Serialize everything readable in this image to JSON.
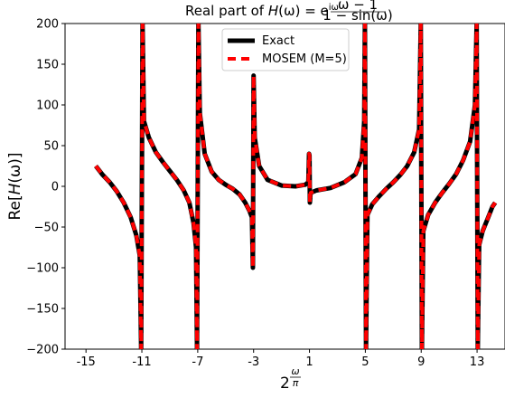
{
  "chart_data": {
    "type": "line",
    "title": {
      "prefix": "Real part of ",
      "H": "H",
      "omega": "(ω) = e",
      "exp": "iω",
      "frac_num": "ω − 1",
      "frac_den": "1 − sin(ω)"
    },
    "xlabel": {
      "base": "2",
      "sup_num": "ω",
      "sup_den": "π"
    },
    "ylabel": {
      "prefix": "Re[",
      "H": "H",
      "suffix": "(ω)]"
    },
    "xlim": [
      -16.5,
      15
    ],
    "ylim": [
      -200,
      200
    ],
    "x_ticks": [
      -15,
      -11,
      -7,
      -3,
      1,
      5,
      9,
      13
    ],
    "x_tick_labels": [
      "-15",
      "-11",
      "-7",
      "-3",
      "1",
      "5",
      "9",
      "13"
    ],
    "y_ticks": [
      -200,
      -150,
      -100,
      -50,
      0,
      50,
      100,
      150,
      200
    ],
    "y_tick_labels": [
      "−200",
      "−150",
      "−100",
      "−50",
      "0",
      "50",
      "100",
      "150",
      "200"
    ],
    "legend_placement": "top-center",
    "grid": false,
    "series": [
      {
        "name": "Exact",
        "color": "#000000",
        "style": "solid",
        "points": [
          [
            -14.3,
            25
          ],
          [
            -13.8,
            14
          ],
          [
            -13.3,
            5
          ],
          [
            -12.8,
            -6
          ],
          [
            -12.3,
            -20
          ],
          [
            -11.8,
            -38
          ],
          [
            -11.4,
            -60
          ],
          [
            -11.15,
            -85
          ],
          [
            -11.05,
            -200
          ],
          [
            -10.95,
            200
          ],
          [
            -10.85,
            80
          ],
          [
            -10.5,
            60
          ],
          [
            -10.0,
            42
          ],
          [
            -9.5,
            30
          ],
          [
            -9.0,
            19
          ],
          [
            -8.5,
            8
          ],
          [
            -8.0,
            -5
          ],
          [
            -7.6,
            -20
          ],
          [
            -7.3,
            -45
          ],
          [
            -7.12,
            -75
          ],
          [
            -7.05,
            -200
          ],
          [
            -6.95,
            200
          ],
          [
            -6.85,
            90
          ],
          [
            -6.5,
            40
          ],
          [
            -6.0,
            18
          ],
          [
            -5.5,
            8
          ],
          [
            -5.0,
            2
          ],
          [
            -4.5,
            -3
          ],
          [
            -4.0,
            -10
          ],
          [
            -3.6,
            -20
          ],
          [
            -3.3,
            -30
          ],
          [
            -3.12,
            -38
          ],
          [
            -3.05,
            -100
          ],
          [
            -3.0,
            136
          ],
          [
            -2.92,
            60
          ],
          [
            -2.6,
            25
          ],
          [
            -2.0,
            8
          ],
          [
            -1.0,
            1
          ],
          [
            0.0,
            0
          ],
          [
            0.7,
            2
          ],
          [
            0.92,
            5
          ],
          [
            0.97,
            40
          ],
          [
            1.0,
            38
          ],
          [
            1.03,
            -20
          ],
          [
            1.08,
            -8
          ],
          [
            1.5,
            -5
          ],
          [
            2.5,
            -2
          ],
          [
            3.5,
            5
          ],
          [
            4.3,
            15
          ],
          [
            4.75,
            35
          ],
          [
            4.92,
            80
          ],
          [
            4.97,
            200
          ],
          [
            5.05,
            -200
          ],
          [
            5.15,
            -35
          ],
          [
            5.5,
            -22
          ],
          [
            6.0,
            -12
          ],
          [
            6.5,
            -3
          ],
          [
            7.0,
            5
          ],
          [
            7.5,
            14
          ],
          [
            8.0,
            25
          ],
          [
            8.5,
            42
          ],
          [
            8.85,
            70
          ],
          [
            8.97,
            200
          ],
          [
            9.05,
            -200
          ],
          [
            9.15,
            -55
          ],
          [
            9.5,
            -35
          ],
          [
            10.0,
            -20
          ],
          [
            10.5,
            -8
          ],
          [
            11.0,
            3
          ],
          [
            11.5,
            15
          ],
          [
            12.0,
            32
          ],
          [
            12.5,
            55
          ],
          [
            12.85,
            100
          ],
          [
            12.97,
            200
          ],
          [
            13.05,
            -200
          ],
          [
            13.15,
            -72
          ],
          [
            13.4,
            -55
          ],
          [
            13.8,
            -38
          ],
          [
            14.1,
            -25
          ],
          [
            14.3,
            -20
          ]
        ]
      },
      {
        "name": "MOSEM (M=5)",
        "color": "#ff0000",
        "style": "dashed",
        "points": [
          [
            -14.3,
            25
          ],
          [
            -13.8,
            14
          ],
          [
            -13.3,
            5
          ],
          [
            -12.8,
            -6
          ],
          [
            -12.3,
            -20
          ],
          [
            -11.8,
            -38
          ],
          [
            -11.4,
            -60
          ],
          [
            -11.15,
            -85
          ],
          [
            -11.05,
            -200
          ],
          [
            -10.95,
            200
          ],
          [
            -10.85,
            80
          ],
          [
            -10.5,
            60
          ],
          [
            -10.0,
            42
          ],
          [
            -9.5,
            30
          ],
          [
            -9.0,
            19
          ],
          [
            -8.5,
            8
          ],
          [
            -8.0,
            -5
          ],
          [
            -7.6,
            -20
          ],
          [
            -7.3,
            -45
          ],
          [
            -7.12,
            -75
          ],
          [
            -7.05,
            -200
          ],
          [
            -6.95,
            200
          ],
          [
            -6.85,
            90
          ],
          [
            -6.5,
            40
          ],
          [
            -6.0,
            18
          ],
          [
            -5.5,
            8
          ],
          [
            -5.0,
            2
          ],
          [
            -4.5,
            -3
          ],
          [
            -4.0,
            -10
          ],
          [
            -3.6,
            -20
          ],
          [
            -3.3,
            -30
          ],
          [
            -3.12,
            -38
          ],
          [
            -3.05,
            -100
          ],
          [
            -3.0,
            136
          ],
          [
            -2.92,
            60
          ],
          [
            -2.6,
            25
          ],
          [
            -2.0,
            8
          ],
          [
            -1.0,
            1
          ],
          [
            0.0,
            0
          ],
          [
            0.7,
            2
          ],
          [
            0.92,
            5
          ],
          [
            0.97,
            40
          ],
          [
            1.0,
            38
          ],
          [
            1.03,
            -20
          ],
          [
            1.08,
            -8
          ],
          [
            1.5,
            -5
          ],
          [
            2.5,
            -2
          ],
          [
            3.5,
            5
          ],
          [
            4.3,
            15
          ],
          [
            4.75,
            35
          ],
          [
            4.92,
            80
          ],
          [
            4.97,
            200
          ],
          [
            5.05,
            -200
          ],
          [
            5.15,
            -35
          ],
          [
            5.5,
            -22
          ],
          [
            6.0,
            -12
          ],
          [
            6.5,
            -3
          ],
          [
            7.0,
            5
          ],
          [
            7.5,
            14
          ],
          [
            8.0,
            25
          ],
          [
            8.5,
            42
          ],
          [
            8.85,
            70
          ],
          [
            8.97,
            200
          ],
          [
            9.05,
            -200
          ],
          [
            9.15,
            -55
          ],
          [
            9.5,
            -35
          ],
          [
            10.0,
            -20
          ],
          [
            10.5,
            -8
          ],
          [
            11.0,
            3
          ],
          [
            11.5,
            15
          ],
          [
            12.0,
            32
          ],
          [
            12.5,
            55
          ],
          [
            12.85,
            100
          ],
          [
            12.97,
            200
          ],
          [
            13.05,
            -200
          ],
          [
            13.15,
            -72
          ],
          [
            13.4,
            -55
          ],
          [
            13.8,
            -38
          ],
          [
            14.1,
            -25
          ],
          [
            14.3,
            -20
          ]
        ]
      }
    ]
  }
}
